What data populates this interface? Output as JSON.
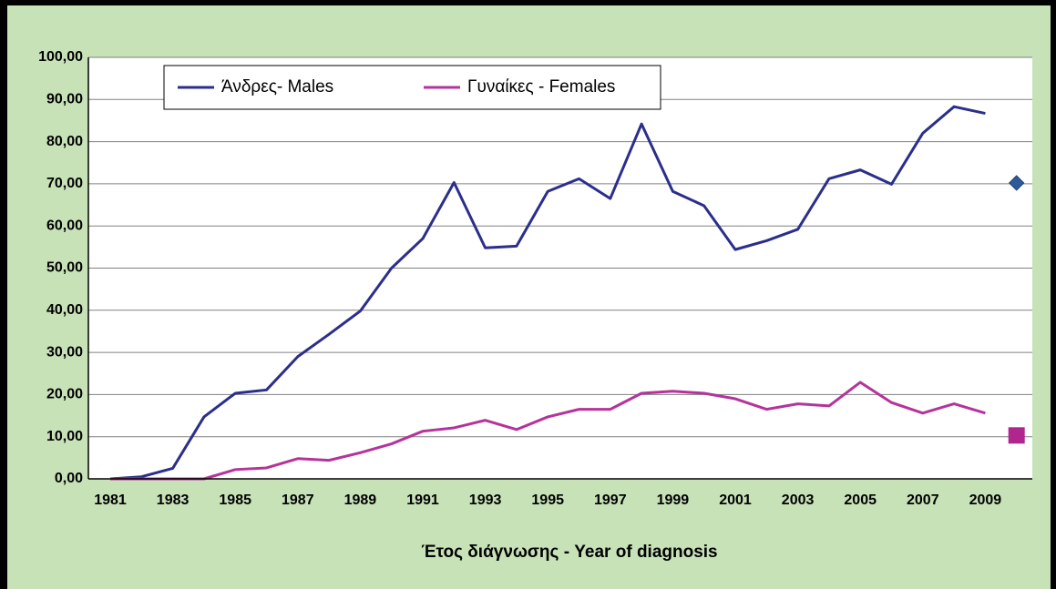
{
  "chart_data": {
    "type": "line",
    "x_label": "Έτος διάγνωσης - Year of diagnosis",
    "categories": [
      "1981",
      null,
      "1983",
      null,
      "1985",
      null,
      "1987",
      null,
      "1989",
      null,
      "1991",
      null,
      "1993",
      null,
      "1995",
      null,
      "1997",
      null,
      "1999",
      null,
      "2001",
      null,
      "2003",
      null,
      "2005",
      null,
      "2007",
      null,
      "2009",
      null
    ],
    "series": [
      {
        "name": "Άνδρες- Males",
        "color": "#2b2e8c",
        "values": [
          0,
          0.5,
          2.5,
          14.7,
          20.3,
          21.1,
          29,
          34.3,
          39.8,
          50,
          57,
          70.3,
          54.8,
          55.2,
          68.2,
          71.2,
          66.5,
          84.2,
          68.2,
          64.8,
          54.4,
          56.5,
          59.2,
          71.2,
          73.3,
          69.9,
          82,
          88.3,
          86.7,
          null
        ],
        "marker_values": [
          null,
          null,
          null,
          null,
          null,
          null,
          null,
          null,
          null,
          null,
          null,
          null,
          null,
          null,
          null,
          null,
          null,
          null,
          null,
          null,
          null,
          null,
          null,
          null,
          null,
          null,
          null,
          null,
          null,
          70.2
        ],
        "marker": "diamond",
        "marker_color": "#2e5a9c"
      },
      {
        "name": "Γυναίκες - Females",
        "color": "#b5339b",
        "values": [
          0,
          0,
          0,
          0,
          2.2,
          2.6,
          4.8,
          4.4,
          6.2,
          8.3,
          11.3,
          12.1,
          13.9,
          11.7,
          14.7,
          16.5,
          16.5,
          20.3,
          20.8,
          20.3,
          19,
          16.5,
          17.8,
          17.3,
          22.9,
          18.1,
          15.6,
          17.8,
          15.6,
          null
        ],
        "marker_values": [
          null,
          null,
          null,
          null,
          null,
          null,
          null,
          null,
          null,
          null,
          null,
          null,
          null,
          null,
          null,
          null,
          null,
          null,
          null,
          null,
          null,
          null,
          null,
          null,
          null,
          null,
          null,
          null,
          null,
          10.3
        ],
        "marker": "square",
        "marker_color": "#b0268e"
      }
    ],
    "ylim": [
      0,
      100
    ],
    "yticks": [
      {
        "value": 0,
        "label": "0,00"
      },
      {
        "value": 10,
        "label": "10,00"
      },
      {
        "value": 20,
        "label": "20,00"
      },
      {
        "value": 30,
        "label": "30,00"
      },
      {
        "value": 40,
        "label": "40,00"
      },
      {
        "value": 50,
        "label": "50,00"
      },
      {
        "value": 60,
        "label": "60,00"
      },
      {
        "value": 70,
        "label": "70,00"
      },
      {
        "value": 80,
        "label": "80,00"
      },
      {
        "value": 90,
        "label": "90,00"
      },
      {
        "value": 100,
        "label": "100,00"
      }
    ],
    "grid": true,
    "legend": "top-left"
  }
}
